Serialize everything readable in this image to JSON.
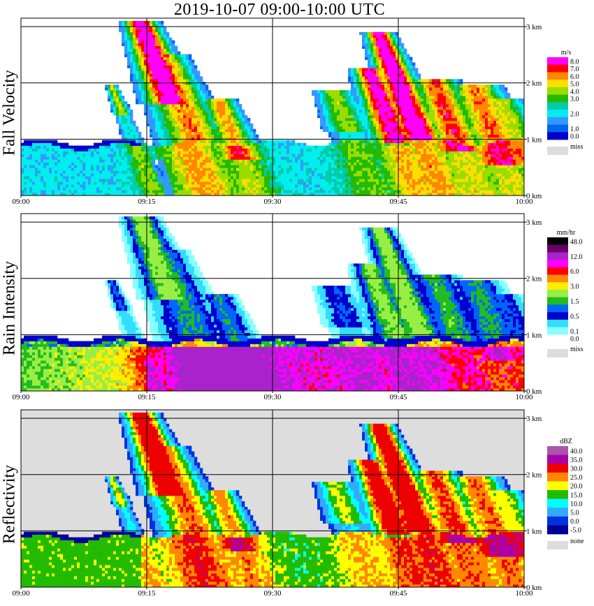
{
  "title": "2019-10-07   09:00-10:00 UTC",
  "chart_data": [
    {
      "type": "heatmap",
      "name": "fall_velocity",
      "ylabel": "Fall Velocity",
      "x_ticks": [
        "09:00",
        "09:15",
        "09:30",
        "09:45",
        "10:00"
      ],
      "y_ticks": [
        "0 km",
        "1 km",
        "2 km",
        "3 km"
      ],
      "ylim_km": [
        0,
        3.15
      ],
      "grid": true,
      "legend_unit": "m/s",
      "legend": [
        {
          "label": "8.0",
          "color": "#ff00ff"
        },
        {
          "label": "7.0",
          "color": "#ff0000"
        },
        {
          "label": "6.0",
          "color": "#ff8800"
        },
        {
          "label": "5.0",
          "color": "#ffdd00"
        },
        {
          "label": "4.0",
          "color": "#99dd00"
        },
        {
          "label": "3.0",
          "color": "#22bb00"
        },
        {
          "label": "",
          "color": "#00ccaa"
        },
        {
          "label": "2.0",
          "color": "#00eeee"
        },
        {
          "label": "",
          "color": "#3399ff"
        },
        {
          "label": "1.0",
          "color": "#0066ee"
        },
        {
          "label": "0.0",
          "color": "#0000cc"
        }
      ],
      "missing_label": "miss"
    },
    {
      "type": "heatmap",
      "name": "rain_intensity",
      "ylabel": "Rain Intensity",
      "x_ticks": [
        "09:00",
        "09:15",
        "09:30",
        "09:45",
        "10:00"
      ],
      "y_ticks": [
        "0 km",
        "1 km",
        "2 km",
        "3 km"
      ],
      "ylim_km": [
        0,
        3.15
      ],
      "grid": true,
      "legend_unit": "mm/hr",
      "legend": [
        {
          "label": "48.0",
          "color": "#000000"
        },
        {
          "label": "",
          "color": "#660066"
        },
        {
          "label": "12.0",
          "color": "#aa22cc"
        },
        {
          "label": "",
          "color": "#ff00ff"
        },
        {
          "label": "6.0",
          "color": "#ff0000"
        },
        {
          "label": "",
          "color": "#ff8800"
        },
        {
          "label": "3.0",
          "color": "#ffee00"
        },
        {
          "label": "",
          "color": "#99ee44"
        },
        {
          "label": "1.5",
          "color": "#22bb22"
        },
        {
          "label": "",
          "color": "#0066ff"
        },
        {
          "label": "0.5",
          "color": "#0000cc"
        },
        {
          "label": "",
          "color": "#33ddff"
        },
        {
          "label": "0.1",
          "color": "#88ffff"
        },
        {
          "label": "0.0",
          "color": "#ffffff"
        }
      ],
      "missing_label": "miss"
    },
    {
      "type": "heatmap",
      "name": "reflectivity",
      "ylabel": "Reflectivity",
      "x_ticks": [
        "09:00",
        "09:15",
        "09:30",
        "09:45",
        "10:00"
      ],
      "y_ticks": [
        "0 km",
        "1 km",
        "2 km",
        "3 km"
      ],
      "ylim_km": [
        0,
        3.15
      ],
      "grid": true,
      "legend_unit": "dBZ",
      "legend": [
        {
          "label": "40.0",
          "color": "#aa55aa"
        },
        {
          "label": "35.0",
          "color": "#aa00aa"
        },
        {
          "label": "30.0",
          "color": "#ee0000"
        },
        {
          "label": "25.0",
          "color": "#ff8800"
        },
        {
          "label": "20.0",
          "color": "#ffff00"
        },
        {
          "label": "15.0",
          "color": "#22bb00"
        },
        {
          "label": "10.0",
          "color": "#00ffff"
        },
        {
          "label": "5.0",
          "color": "#33aaff"
        },
        {
          "label": "0.0",
          "color": "#0033dd"
        },
        {
          "label": "-5.0",
          "color": "#000099"
        }
      ],
      "missing_label": "none",
      "missing_color": "#dddddd"
    }
  ]
}
